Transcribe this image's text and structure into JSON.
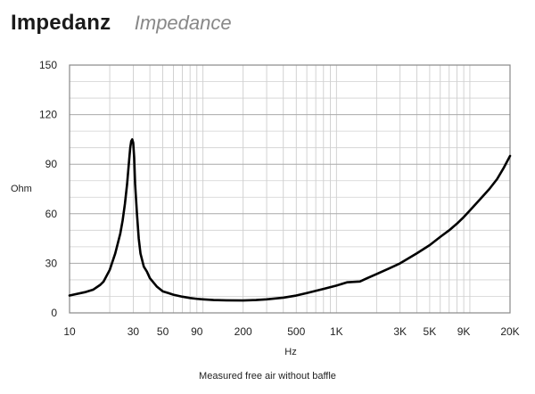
{
  "header": {
    "title": "Impedanz",
    "subtitle": "Impedance"
  },
  "caption": "Measured free air without baffle",
  "chart_data": {
    "type": "line",
    "title": "Impedanz",
    "subtitle": "Impedance",
    "xlabel": "Hz",
    "ylabel": "Ohm",
    "xscale": "log",
    "xlim": [
      10,
      20000
    ],
    "ylim": [
      0,
      150
    ],
    "grid": true,
    "x_ticks": [
      10,
      30,
      50,
      90,
      200,
      500,
      1000,
      3000,
      5000,
      9000,
      20000
    ],
    "x_tick_labels": [
      "10",
      "30",
      "50",
      "90",
      "200",
      "500",
      "1K",
      "3K",
      "5K",
      "9K",
      "20K"
    ],
    "y_ticks": [
      0,
      30,
      60,
      90,
      120,
      150
    ],
    "y_tick_labels": [
      "0",
      "30",
      "60",
      "90",
      "120",
      "150"
    ],
    "series": [
      {
        "color": "#000000",
        "x": [
          10,
          13,
          15,
          17,
          18,
          20,
          22,
          24,
          25,
          26,
          27,
          28,
          28.5,
          29,
          29.5,
          30,
          30.5,
          31,
          32,
          33,
          34,
          36,
          38,
          40,
          45,
          50,
          55,
          60,
          70,
          80,
          90,
          100,
          120,
          150,
          200,
          250,
          300,
          400,
          500,
          600,
          800,
          1000,
          1200,
          1500,
          1700,
          2000,
          2500,
          3000,
          4000,
          5000,
          6000,
          7000,
          8000,
          9000,
          10000,
          12000,
          14000,
          16000,
          18000,
          20000
        ],
        "y": [
          10.5,
          12.5,
          14,
          17,
          19,
          26,
          36,
          48,
          56,
          66,
          78,
          93,
          100,
          104,
          105,
          103,
          94,
          78,
          60,
          45,
          36,
          28,
          25,
          21,
          16,
          13,
          12,
          11,
          9.8,
          9,
          8.5,
          8.2,
          7.8,
          7.6,
          7.5,
          7.8,
          8.2,
          9.2,
          10.5,
          12,
          14.5,
          16.5,
          18.5,
          19,
          21,
          23.5,
          27,
          30,
          36,
          41,
          46,
          50,
          54,
          58,
          62,
          69,
          75,
          81,
          88,
          95
        ]
      }
    ]
  }
}
